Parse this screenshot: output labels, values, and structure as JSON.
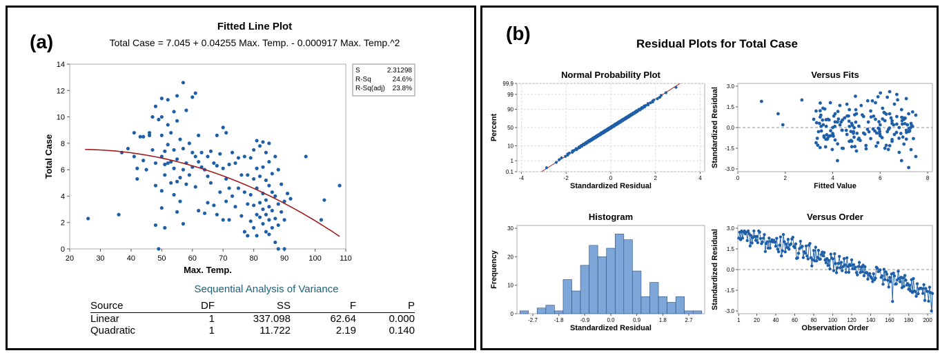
{
  "panel_a": {
    "tag": "(a)",
    "title": "Fitted Line Plot",
    "equation": "Total Case = 7.045 + 0.04255 Max. Temp. - 0.000917 Max. Temp.^2",
    "stats": [
      {
        "label": "S",
        "value": "2.31298"
      },
      {
        "label": "R-Sq",
        "value": "24.6%"
      },
      {
        "label": "R-Sq(adj)",
        "value": "23.8%"
      }
    ],
    "anova": {
      "title": "Sequential Analysis of Variance",
      "headers": [
        "Source",
        "DF",
        "SS",
        "F",
        "P"
      ],
      "rows": [
        [
          "Linear",
          "1",
          "337.098",
          "62.64",
          "0.000"
        ],
        [
          "Quadratic",
          "1",
          "11.722",
          "2.19",
          "0.140"
        ]
      ]
    }
  },
  "panel_b": {
    "tag": "(b)",
    "title": "Residual Plots for Total Case"
  },
  "colors": {
    "points": "#1f5fa8",
    "fit_line": "#a01c1c",
    "hist_bar": "#7ea6d8",
    "ref_line": "#8c8c8c",
    "anova_title": "#1f5f7a"
  },
  "chart_data": [
    {
      "id": "fitted",
      "type": "scatter",
      "title": "Fitted Line Plot",
      "xlabel": "Max. Temp.",
      "ylabel": "Total Case",
      "xlim": [
        20,
        110
      ],
      "ylim": [
        0,
        14
      ],
      "xticks": [
        20,
        30,
        40,
        50,
        60,
        70,
        80,
        90,
        100,
        110
      ],
      "yticks": [
        0,
        2,
        4,
        6,
        8,
        10,
        12,
        14
      ],
      "fit": {
        "intercept": 7.045,
        "b1": 0.04255,
        "b2": -0.000917,
        "x_range": [
          25,
          108
        ]
      },
      "points": [
        [
          26,
          2.3
        ],
        [
          36,
          2.6
        ],
        [
          37,
          7.3
        ],
        [
          39,
          7.6
        ],
        [
          41,
          8.8
        ],
        [
          41,
          7.0
        ],
        [
          42,
          6.1
        ],
        [
          42,
          5.3
        ],
        [
          43,
          8.5
        ],
        [
          44,
          8.5
        ],
        [
          44,
          6.7
        ],
        [
          45,
          6.0
        ],
        [
          46,
          8.8
        ],
        [
          46,
          8.6
        ],
        [
          47,
          10.0
        ],
        [
          47,
          7.5
        ],
        [
          48,
          10.8
        ],
        [
          48,
          6.5
        ],
        [
          48,
          4.8
        ],
        [
          48,
          1.8
        ],
        [
          49,
          9.8
        ],
        [
          49,
          0.0
        ],
        [
          50,
          11.4
        ],
        [
          50,
          10.0
        ],
        [
          50,
          8.6
        ],
        [
          50,
          7.0
        ],
        [
          50,
          4.4
        ],
        [
          50,
          3.1
        ],
        [
          51,
          7.4
        ],
        [
          51,
          6.4
        ],
        [
          51,
          5.6
        ],
        [
          51,
          1.6
        ],
        [
          52,
          11.3
        ],
        [
          52,
          9.4
        ],
        [
          52,
          7.9
        ],
        [
          52,
          6.5
        ],
        [
          53,
          8.8
        ],
        [
          53,
          6.6
        ],
        [
          53,
          5.0
        ],
        [
          54,
          10.4
        ],
        [
          54,
          7.5
        ],
        [
          54,
          6.1
        ],
        [
          54,
          4.1
        ],
        [
          55,
          11.6
        ],
        [
          55,
          9.7
        ],
        [
          55,
          6.8
        ],
        [
          55,
          5.1
        ],
        [
          55,
          2.8
        ],
        [
          56,
          8.3
        ],
        [
          56,
          5.4
        ],
        [
          56,
          3.6
        ],
        [
          57,
          12.6
        ],
        [
          57,
          7.6
        ],
        [
          57,
          6.0
        ],
        [
          57,
          1.9
        ],
        [
          58,
          10.5
        ],
        [
          58,
          6.5
        ],
        [
          58,
          4.9
        ],
        [
          59,
          8.0
        ],
        [
          59,
          5.6
        ],
        [
          60,
          11.5
        ],
        [
          60,
          7.3
        ],
        [
          60,
          6.2
        ],
        [
          61,
          11.8
        ],
        [
          61,
          7.0
        ],
        [
          61,
          4.7
        ],
        [
          62,
          8.6
        ],
        [
          62,
          6.6
        ],
        [
          62,
          2.9
        ],
        [
          63,
          7.3
        ],
        [
          63,
          6.2
        ],
        [
          64,
          6.0
        ],
        [
          64,
          2.7
        ],
        [
          65,
          7.0
        ],
        [
          65,
          5.5
        ],
        [
          65,
          3.5
        ],
        [
          66,
          7.4
        ],
        [
          66,
          5.0
        ],
        [
          67,
          6.5
        ],
        [
          67,
          3.3
        ],
        [
          68,
          8.6
        ],
        [
          68,
          6.3
        ],
        [
          68,
          2.6
        ],
        [
          69,
          7.2
        ],
        [
          69,
          4.3
        ],
        [
          70,
          9.2
        ],
        [
          70,
          6.1
        ],
        [
          70,
          2.2
        ],
        [
          71,
          8.8
        ],
        [
          71,
          5.3
        ],
        [
          71,
          3.6
        ],
        [
          72,
          6.4
        ],
        [
          72,
          4.6
        ],
        [
          72,
          2.2
        ],
        [
          73,
          7.3
        ],
        [
          73,
          4.0
        ],
        [
          74,
          6.5
        ],
        [
          74,
          3.2
        ],
        [
          75,
          6.9
        ],
        [
          75,
          4.6
        ],
        [
          76,
          5.6
        ],
        [
          76,
          2.5
        ],
        [
          77,
          7.0
        ],
        [
          77,
          4.3
        ],
        [
          77,
          1.3
        ],
        [
          78,
          5.6
        ],
        [
          78,
          3.4
        ],
        [
          78,
          1.0
        ],
        [
          79,
          6.9
        ],
        [
          79,
          4.1
        ],
        [
          79,
          2.1
        ],
        [
          80,
          7.5
        ],
        [
          80,
          5.3
        ],
        [
          80,
          3.3
        ],
        [
          80,
          1.6
        ],
        [
          81,
          8.2
        ],
        [
          81,
          6.1
        ],
        [
          81,
          4.6
        ],
        [
          81,
          2.6
        ],
        [
          81,
          1.0
        ],
        [
          82,
          7.8
        ],
        [
          82,
          5.5
        ],
        [
          82,
          3.5
        ],
        [
          82,
          2.4
        ],
        [
          83,
          8.1
        ],
        [
          83,
          6.2
        ],
        [
          83,
          4.2
        ],
        [
          83,
          3.0
        ],
        [
          83,
          1.9
        ],
        [
          84,
          7.3
        ],
        [
          84,
          5.2
        ],
        [
          84,
          3.7
        ],
        [
          84,
          2.6
        ],
        [
          84,
          1.3
        ],
        [
          85,
          8.0
        ],
        [
          85,
          6.6
        ],
        [
          85,
          4.8
        ],
        [
          85,
          3.2
        ],
        [
          85,
          2.2
        ],
        [
          85,
          1.1
        ],
        [
          86,
          5.7
        ],
        [
          86,
          4.3
        ],
        [
          86,
          2.9
        ],
        [
          86,
          1.6
        ],
        [
          87,
          7.0
        ],
        [
          87,
          4.0
        ],
        [
          87,
          2.3
        ],
        [
          87,
          0.5
        ],
        [
          88,
          6.0
        ],
        [
          88,
          3.4
        ],
        [
          88,
          1.8
        ],
        [
          88,
          0.0
        ],
        [
          89,
          4.9
        ],
        [
          89,
          2.8
        ],
        [
          90,
          3.6
        ],
        [
          90,
          2.2
        ],
        [
          90,
          0.0
        ],
        [
          91,
          4.2
        ],
        [
          92,
          3.8
        ],
        [
          97,
          7.0
        ],
        [
          102,
          2.2
        ],
        [
          103,
          3.7
        ],
        [
          108,
          4.8
        ]
      ]
    },
    {
      "id": "normal-probability",
      "type": "scatter",
      "title": "Normal Probability Plot",
      "xlabel": "Standardized Residual",
      "ylabel": "Percent",
      "xticks": [
        -4,
        -2,
        0,
        2,
        4
      ],
      "yticks": [
        0.1,
        1,
        10,
        50,
        90,
        99,
        99.9
      ],
      "xlim": [
        -4.2,
        4.2
      ],
      "ref_line": {
        "from": [
          -3.1,
          0.1
        ],
        "to": [
          3.1,
          99.9
        ]
      }
    },
    {
      "id": "versus-fits",
      "type": "scatter",
      "title": "Versus Fits",
      "xlabel": "Fitted Value",
      "ylabel": "Standardized Residual",
      "xlim": [
        0,
        8.2
      ],
      "ylim": [
        -3.2,
        3.2
      ],
      "xticks": [
        0,
        2,
        4,
        6,
        8
      ],
      "yticks": [
        -3.0,
        -1.5,
        0.0,
        1.5,
        3.0
      ],
      "points": [
        [
          1.0,
          1.9
        ],
        [
          1.7,
          1.0
        ],
        [
          1.9,
          0.2
        ],
        [
          2.7,
          2.0
        ],
        [
          3.2,
          0.6
        ],
        [
          3.3,
          1.2
        ],
        [
          3.3,
          -1.1
        ],
        [
          3.4,
          -0.3
        ],
        [
          3.5,
          0.9
        ],
        [
          3.6,
          0.2
        ],
        [
          3.7,
          -1.4
        ],
        [
          3.8,
          0.6
        ],
        [
          3.9,
          -0.6
        ],
        [
          3.9,
          1.8
        ],
        [
          4.0,
          0.0
        ],
        [
          4.1,
          1.0
        ],
        [
          4.1,
          -0.9
        ],
        [
          4.2,
          -2.4
        ],
        [
          4.2,
          0.4
        ],
        [
          4.3,
          1.6
        ],
        [
          4.4,
          -0.2
        ],
        [
          4.4,
          -1.5
        ],
        [
          4.5,
          0.7
        ],
        [
          4.6,
          -0.5
        ],
        [
          4.7,
          1.3
        ],
        [
          4.7,
          -1.0
        ],
        [
          4.8,
          0.3
        ],
        [
          4.9,
          -0.7
        ],
        [
          5.0,
          1.0
        ],
        [
          5.0,
          -1.7
        ],
        [
          5.1,
          0.1
        ],
        [
          5.2,
          1.6
        ],
        [
          5.3,
          -0.4
        ],
        [
          5.3,
          0.8
        ],
        [
          5.4,
          -1.3
        ],
        [
          5.5,
          0.4
        ],
        [
          5.6,
          1.2
        ],
        [
          5.6,
          -0.8
        ],
        [
          5.7,
          -0.1
        ],
        [
          5.8,
          0.6
        ],
        [
          5.8,
          1.8
        ],
        [
          5.9,
          -1.1
        ],
        [
          6.0,
          0.2
        ],
        [
          6.0,
          -0.6
        ],
        [
          6.1,
          1.4
        ],
        [
          6.2,
          -1.5
        ],
        [
          6.2,
          0.5
        ],
        [
          6.3,
          2.2
        ],
        [
          6.3,
          -0.3
        ],
        [
          6.4,
          1.0
        ],
        [
          6.4,
          2.6
        ],
        [
          6.5,
          -1.0
        ],
        [
          6.5,
          0.3
        ],
        [
          6.6,
          1.7
        ],
        [
          6.6,
          -0.5
        ],
        [
          6.7,
          2.4
        ],
        [
          6.7,
          0.8
        ],
        [
          6.8,
          -1.8
        ],
        [
          6.8,
          0.0
        ],
        [
          6.9,
          1.3
        ],
        [
          6.9,
          -2.4
        ],
        [
          7.0,
          0.6
        ],
        [
          7.0,
          -1.2
        ],
        [
          7.1,
          2.1
        ],
        [
          7.1,
          -0.2
        ],
        [
          7.2,
          1.0
        ],
        [
          7.2,
          -2.9
        ],
        [
          7.3,
          0.3
        ],
        [
          7.3,
          -1.6
        ],
        [
          7.4,
          -0.8
        ],
        [
          7.5,
          -2.1
        ],
        [
          7.5,
          0.9
        ]
      ]
    },
    {
      "id": "histogram",
      "type": "bar",
      "title": "Histogram",
      "xlabel": "Standardized Residual",
      "ylabel": "Frequency",
      "xticks": [
        -2.7,
        -1.8,
        -0.9,
        0.0,
        0.9,
        1.8,
        2.7
      ],
      "yticks": [
        0,
        10,
        20,
        30
      ],
      "ylim": [
        0,
        31
      ],
      "bin_width": 0.3,
      "bin_start": -3.15,
      "values": [
        1,
        0,
        2,
        3,
        1,
        12,
        8,
        17,
        24,
        20,
        23,
        28,
        26,
        15,
        6,
        11,
        6,
        4,
        6,
        1,
        1
      ]
    },
    {
      "id": "versus-order",
      "type": "line",
      "title": "Versus Order",
      "xlabel": "Observation Order",
      "ylabel": "Standardized Residual",
      "xlim": [
        0,
        205
      ],
      "ylim": [
        -3.2,
        3.2
      ],
      "xticks": [
        1,
        20,
        40,
        60,
        80,
        100,
        120,
        140,
        160,
        180,
        200
      ],
      "yticks": [
        -3.0,
        -1.5,
        0.0,
        1.5,
        3.0
      ],
      "trend": {
        "start": 2.7,
        "end": -1.6
      }
    }
  ]
}
